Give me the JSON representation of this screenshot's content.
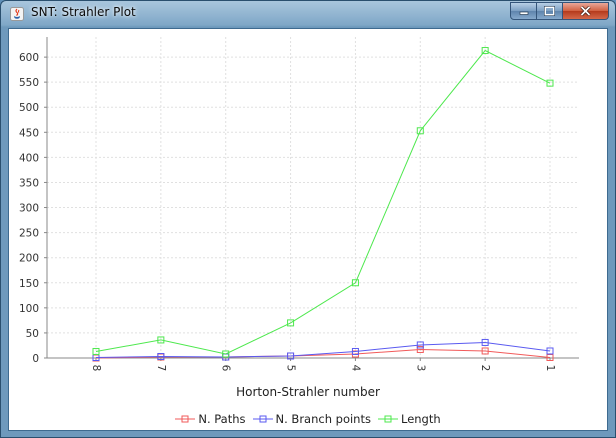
{
  "window": {
    "title": "SNT: Strahler Plot",
    "controls": {
      "minimize": "–",
      "maximize": "□",
      "close": "✕"
    }
  },
  "colors": {
    "paths": "#f15a5a",
    "branch": "#5a5af0",
    "length": "#4de84d",
    "grid": "#e0e0e0"
  },
  "chart_data": {
    "type": "line",
    "title": "",
    "xlabel": "Horton-Strahler number",
    "ylabel": "",
    "categories": [
      "8",
      "7",
      "6",
      "5",
      "4",
      "3",
      "2",
      "1"
    ],
    "ylim": [
      0,
      640
    ],
    "yticks": [
      0,
      50,
      100,
      150,
      200,
      250,
      300,
      350,
      400,
      450,
      500,
      550,
      600
    ],
    "grid": true,
    "legend_position": "bottom",
    "series": [
      {
        "name": "N. Paths",
        "color": "#f15a5a",
        "values": [
          0,
          2,
          2,
          4,
          8,
          17,
          14,
          1
        ]
      },
      {
        "name": "N. Branch points",
        "color": "#5a5af0",
        "values": [
          1,
          3,
          2,
          4,
          13,
          26,
          31,
          14
        ]
      },
      {
        "name": "Length",
        "color": "#4de84d",
        "values": [
          13,
          36,
          8,
          70,
          150,
          453,
          613,
          548
        ]
      }
    ]
  }
}
